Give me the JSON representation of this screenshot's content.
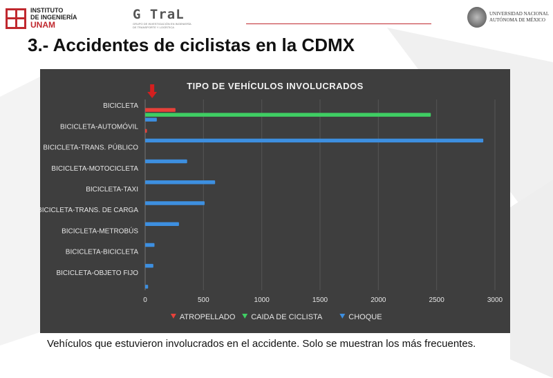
{
  "header": {
    "institute_logo": {
      "line1": "INSTITUTO",
      "line2": "DE INGENIERÍA",
      "line3": "UNAM"
    },
    "gotrat_logo": {
      "name": "G TraL",
      "subtitle": "GRUPO DE INVESTIGACIÓN EN INGENIERÍA DE TRANSPORTE Y LOGÍSTICA"
    },
    "unam_logo": {
      "line1": "UNIVERSIDAD NACIONAL",
      "line2": "AUTÓNOMA DE MÉXICO"
    },
    "accent_color": "#c0282e"
  },
  "slide": {
    "title": "3.- Accidentes de ciclistas en la CDMX",
    "caption": "Vehículos que estuvieron involucrados en el accidente. Solo se muestran los más frecuentes."
  },
  "chart_data": {
    "type": "bar",
    "orientation": "horizontal",
    "title": "TIPO DE VEHÍCULOS INVOLUCRADOS",
    "categories": [
      "BICICLETA",
      "BICICLETA-AUTOMÓVIL",
      "BICICLETA-TRANS. PÚBLICO",
      "BICICLETA-MOTOCICLETA",
      "BICICLETA-TAXI",
      "BICICLETA-TRANS. DE CARGA",
      "BICICLETA-METROBÚS",
      "BICICLETA-BICICLETA",
      "BICICLETA-OBJETO FIJO"
    ],
    "series": [
      {
        "name": "ATROPELLADO",
        "color": "#e8413a",
        "values": [
          260,
          15,
          0,
          0,
          0,
          0,
          0,
          0,
          0
        ]
      },
      {
        "name": "CAIDA DE CICLISTA",
        "color": "#3fce63",
        "values": [
          2450,
          0,
          0,
          0,
          0,
          0,
          0,
          0,
          0
        ]
      },
      {
        "name": "CHOQUE",
        "color": "#3d8fe0",
        "values": [
          100,
          2900,
          360,
          600,
          510,
          290,
          80,
          70,
          25
        ]
      }
    ],
    "xlim": [
      0,
      3000
    ],
    "xticks": [
      "0",
      "500",
      "1000",
      "1500",
      "2000",
      "2500",
      "3000"
    ],
    "legend_position": "bottom",
    "grid": true,
    "annotation": "red-arrow-marker"
  }
}
